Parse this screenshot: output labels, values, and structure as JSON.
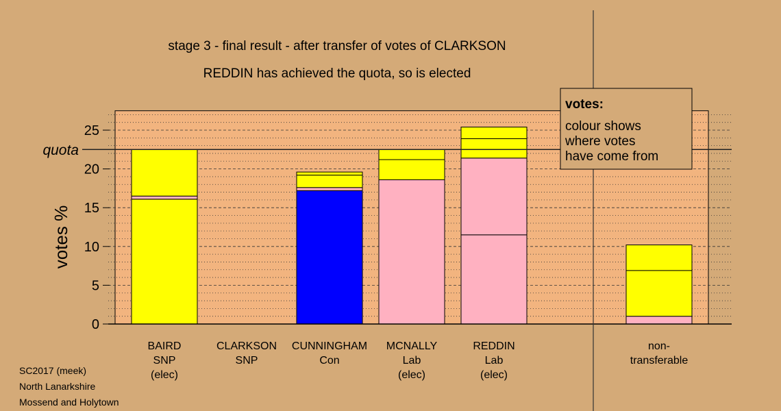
{
  "chart_data": {
    "type": "bar",
    "stacked": true,
    "title": "stage 3 - final result - after transfer of votes of CLARKSON",
    "subtitle": "REDDIN has achieved the quota, so is elected",
    "ylabel": "votes %",
    "xlabel": "",
    "ylim": [
      0,
      27.5
    ],
    "yticks": [
      0,
      5,
      10,
      15,
      20,
      25
    ],
    "quota": {
      "label": "quota",
      "value": 22.5
    },
    "grid": "dotted lines every 1 unit, dashed at 5-unit ticks",
    "legend": {
      "placement": "top-right",
      "title": "votes:",
      "lines": [
        "colour shows",
        "where votes",
        "have come from"
      ]
    },
    "candidates": [
      {
        "lines": [
          "BAIRD",
          "SNP",
          "(elec)"
        ],
        "segments": [
          {
            "value": 16.1,
            "color": "#ffff00"
          },
          {
            "value": 0.4,
            "color": "#ffb1c1"
          },
          {
            "value": 6.0,
            "color": "#ffff00"
          }
        ]
      },
      {
        "lines": [
          "CLARKSON",
          "SNP"
        ],
        "segments": []
      },
      {
        "lines": [
          "CUNNINGHAM",
          "Con"
        ],
        "segments": [
          {
            "value": 17.2,
            "color": "#0000ff"
          },
          {
            "value": 0.4,
            "color": "#ffb1c1"
          },
          {
            "value": 1.6,
            "color": "#ffff00"
          },
          {
            "value": 0.4,
            "color": "#ffff00"
          }
        ]
      },
      {
        "lines": [
          "MCNALLY",
          "Lab",
          "(elec)"
        ],
        "segments": [
          {
            "value": 18.6,
            "color": "#ffb1c1"
          },
          {
            "value": 2.6,
            "color": "#ffff00"
          },
          {
            "value": 1.3,
            "color": "#ffff00"
          }
        ]
      },
      {
        "lines": [
          "REDDIN",
          "Lab",
          "(elec)"
        ],
        "segments": [
          {
            "value": 11.5,
            "color": "#ffb1c1"
          },
          {
            "value": 9.9,
            "color": "#ffb1c1"
          },
          {
            "value": 2.5,
            "color": "#ffff00"
          },
          {
            "value": 1.5,
            "color": "#ffff00"
          }
        ]
      },
      {
        "lines": [
          "non-",
          "transferable"
        ],
        "segments": [
          {
            "value": 1.0,
            "color": "#ffb1c1"
          },
          {
            "value": 5.9,
            "color": "#ffff00"
          },
          {
            "value": 3.3,
            "color": "#ffff00"
          }
        ]
      }
    ]
  },
  "footer": {
    "lines": [
      "SC2017 (meek)",
      "North Lanarkshire",
      "Mossend and Holytown"
    ]
  },
  "colors": {
    "background": "#d4aa78",
    "plot_area": "#f2b47f",
    "snp": "#ffff00",
    "lab": "#ffb1c1",
    "con": "#0000ff"
  }
}
